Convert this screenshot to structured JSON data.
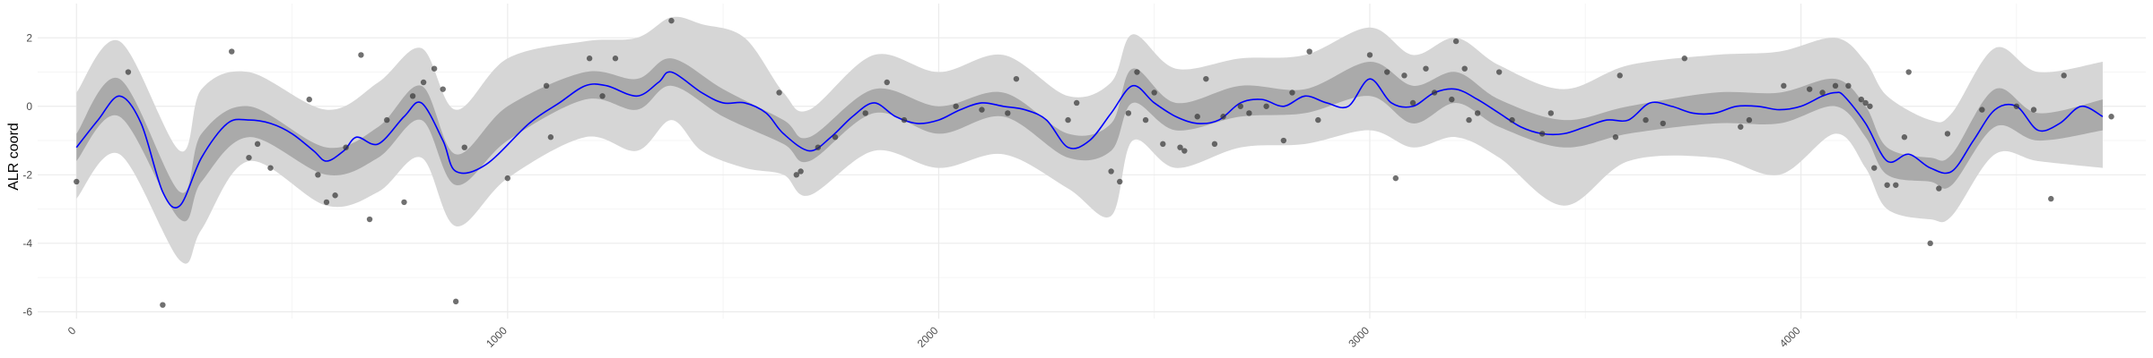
{
  "chart_data": {
    "type": "line",
    "title": "",
    "xlabel": "",
    "ylabel": "ALR coord",
    "xlim": [
      -90,
      4800
    ],
    "ylim": [
      -6.2,
      3.0
    ],
    "grid": true,
    "legend": "none",
    "x_ticks": [
      0,
      1000,
      2000,
      3000,
      4000
    ],
    "x_tick_labels": [
      "0",
      "1000",
      "2000",
      "3000",
      "4000"
    ],
    "y_ticks": [
      -6,
      -4,
      -2,
      0,
      2
    ],
    "y_tick_labels": [
      "-6",
      "-4",
      "-2",
      "0",
      "2"
    ],
    "colors": {
      "mean_line": "#0000ff",
      "inner_band": "#aaaaaa",
      "outer_band": "#d6d6d6",
      "points": "#333333",
      "grid_major": "#ebebeb",
      "grid_minor": "#f5f5f5"
    },
    "series": [
      {
        "kind": "mean",
        "x": [
          0,
          50,
          100,
          150,
          200,
          240,
          290,
          350,
          400,
          450,
          500,
          550,
          580,
          620,
          650,
          700,
          760,
          800,
          850,
          880,
          950,
          1050,
          1120,
          1180,
          1230,
          1300,
          1350,
          1380,
          1450,
          1500,
          1550,
          1600,
          1640,
          1700,
          1750,
          1800,
          1850,
          1900,
          1950,
          2000,
          2050,
          2100,
          2150,
          2200,
          2250,
          2300,
          2350,
          2400,
          2450,
          2500,
          2550,
          2600,
          2650,
          2700,
          2750,
          2800,
          2850,
          2900,
          2950,
          3000,
          3050,
          3100,
          3150,
          3200,
          3250,
          3300,
          3350,
          3400,
          3450,
          3500,
          3550,
          3600,
          3650,
          3700,
          3750,
          3800,
          3850,
          3900,
          3950,
          4000,
          4050,
          4080,
          4100,
          4150,
          4200,
          4250,
          4300,
          4350,
          4400,
          4450,
          4500,
          4550,
          4600,
          4650,
          4700
        ],
        "y": [
          -1.2,
          -0.4,
          0.3,
          -0.5,
          -2.5,
          -2.9,
          -1.5,
          -0.5,
          -0.4,
          -0.5,
          -0.8,
          -1.3,
          -1.6,
          -1.3,
          -0.9,
          -1.1,
          -0.3,
          0.1,
          -1.0,
          -1.9,
          -1.7,
          -0.5,
          0.1,
          0.6,
          0.6,
          0.3,
          0.7,
          1.0,
          0.4,
          0.1,
          0.1,
          -0.2,
          -0.8,
          -1.3,
          -0.9,
          -0.3,
          0.1,
          -0.3,
          -0.5,
          -0.4,
          -0.1,
          0.1,
          0.0,
          -0.1,
          -0.4,
          -1.2,
          -1.0,
          -0.2,
          0.6,
          0.1,
          -0.3,
          -0.5,
          -0.4,
          0.1,
          0.2,
          0.0,
          0.3,
          0.1,
          0.0,
          0.8,
          0.1,
          0.0,
          0.4,
          0.5,
          0.2,
          -0.2,
          -0.6,
          -0.8,
          -0.8,
          -0.6,
          -0.4,
          -0.4,
          0.1,
          0.0,
          -0.2,
          -0.2,
          0.0,
          0.0,
          -0.1,
          0.0,
          0.3,
          0.4,
          0.3,
          -0.5,
          -1.6,
          -1.4,
          -1.8,
          -1.9,
          -1.0,
          -0.1,
          0.0,
          -0.7,
          -0.5,
          0.0,
          -0.3
        ]
      },
      {
        "kind": "inner_band",
        "x": [
          0,
          100,
          240,
          290,
          400,
          580,
          700,
          800,
          880,
          1000,
          1180,
          1300,
          1380,
          1500,
          1640,
          1700,
          1850,
          2000,
          2150,
          2300,
          2400,
          2450,
          2550,
          2700,
          2850,
          3000,
          3100,
          3200,
          3300,
          3450,
          3600,
          3800,
          3950,
          4080,
          4150,
          4200,
          4300,
          4350,
          4450,
          4550,
          4700
        ],
        "lower": [
          -1.6,
          -0.3,
          -3.3,
          -2.2,
          -0.9,
          -2.0,
          -1.5,
          -0.4,
          -2.3,
          -1.0,
          0.2,
          -0.1,
          0.6,
          -0.3,
          -1.1,
          -1.6,
          -0.2,
          -0.8,
          -0.3,
          -1.5,
          -1.3,
          0.1,
          -0.7,
          -0.3,
          -0.2,
          0.3,
          -0.5,
          0.1,
          -0.6,
          -1.2,
          -0.8,
          -0.5,
          -0.5,
          0.0,
          -0.9,
          -2.0,
          -2.2,
          -2.3,
          -0.6,
          -1.0,
          -0.7
        ],
        "upper": [
          -0.8,
          0.8,
          -2.5,
          -0.8,
          0.0,
          -1.2,
          -0.6,
          0.6,
          -1.4,
          0.0,
          1.0,
          0.8,
          1.4,
          0.5,
          -0.4,
          -0.9,
          0.5,
          0.0,
          0.4,
          -0.8,
          -0.5,
          1.1,
          0.1,
          0.6,
          0.5,
          1.3,
          0.6,
          1.0,
          0.2,
          -0.4,
          0.0,
          0.4,
          0.4,
          0.8,
          0.0,
          -1.2,
          -1.5,
          -1.4,
          0.5,
          -0.2,
          0.2
        ]
      },
      {
        "kind": "outer_band",
        "x": [
          0,
          100,
          240,
          290,
          400,
          580,
          700,
          800,
          880,
          1000,
          1180,
          1300,
          1380,
          1450,
          1550,
          1640,
          1700,
          1850,
          2000,
          2150,
          2300,
          2400,
          2450,
          2550,
          2700,
          2850,
          3000,
          3100,
          3200,
          3300,
          3450,
          3600,
          3800,
          3950,
          4080,
          4150,
          4200,
          4300,
          4350,
          4450,
          4550,
          4700
        ],
        "lower": [
          -2.7,
          -1.4,
          -4.5,
          -3.6,
          -1.6,
          -2.9,
          -2.5,
          -1.5,
          -3.5,
          -2.1,
          -0.9,
          -1.3,
          -0.4,
          -1.3,
          -1.8,
          -2.0,
          -2.6,
          -1.3,
          -1.8,
          -1.4,
          -2.4,
          -3.2,
          -1.0,
          -1.8,
          -1.2,
          -1.1,
          -0.7,
          -1.2,
          -0.9,
          -1.5,
          -2.9,
          -1.6,
          -1.5,
          -2.0,
          -0.8,
          -1.8,
          -3.0,
          -3.3,
          -3.2,
          -1.4,
          -1.6,
          -1.8
        ],
        "upper": [
          0.4,
          1.9,
          -1.3,
          0.5,
          1.0,
          -0.1,
          0.7,
          1.7,
          -0.1,
          1.4,
          1.9,
          2.0,
          2.6,
          2.4,
          2.0,
          0.4,
          -0.1,
          1.5,
          1.0,
          1.5,
          0.3,
          0.7,
          2.1,
          1.1,
          1.4,
          1.5,
          2.3,
          1.5,
          2.0,
          1.2,
          0.5,
          1.2,
          1.5,
          1.6,
          2.0,
          1.3,
          0.3,
          -0.4,
          -0.2,
          1.7,
          1.0,
          1.3
        ]
      }
    ],
    "points": {
      "x": [
        0,
        120,
        200,
        360,
        400,
        420,
        450,
        540,
        560,
        580,
        600,
        625,
        660,
        680,
        720,
        760,
        780,
        805,
        830,
        850,
        880,
        900,
        1000,
        1090,
        1100,
        1190,
        1220,
        1250,
        1380,
        1630,
        1670,
        1680,
        1720,
        1760,
        1830,
        1880,
        1920,
        2040,
        2100,
        2160,
        2180,
        2300,
        2320,
        2400,
        2420,
        2440,
        2460,
        2480,
        2500,
        2520,
        2560,
        2570,
        2600,
        2620,
        2640,
        2660,
        2700,
        2720,
        2760,
        2800,
        2820,
        2860,
        2880,
        3000,
        3040,
        3060,
        3080,
        3100,
        3130,
        3150,
        3190,
        3200,
        3220,
        3230,
        3250,
        3300,
        3330,
        3400,
        3420,
        3570,
        3580,
        3640,
        3680,
        3730,
        3860,
        3880,
        3960,
        4020,
        4050,
        4080,
        4110,
        4140,
        4150,
        4160,
        4170,
        4200,
        4220,
        4240,
        4250,
        4300,
        4320,
        4340,
        4420,
        4500,
        4540,
        4580,
        4610,
        4720
      ],
      "y": [
        -2.2,
        1.0,
        -5.8,
        1.6,
        -1.5,
        -1.1,
        -1.8,
        0.2,
        -2.0,
        -2.8,
        -2.6,
        -1.2,
        1.5,
        -3.3,
        -0.4,
        -2.8,
        0.3,
        0.7,
        1.1,
        0.5,
        -5.7,
        -1.2,
        -2.1,
        0.6,
        -0.9,
        1.4,
        0.3,
        1.4,
        2.5,
        0.4,
        -2.0,
        -1.9,
        -1.2,
        -0.9,
        -0.2,
        0.7,
        -0.4,
        0.0,
        -0.1,
        -0.2,
        0.8,
        -0.4,
        0.1,
        -1.9,
        -2.2,
        -0.2,
        1.0,
        -0.4,
        0.4,
        -1.1,
        -1.2,
        -1.3,
        -0.3,
        0.8,
        -1.1,
        -0.3,
        0.0,
        -0.2,
        0.0,
        -1.0,
        0.4,
        1.6,
        -0.4,
        1.5,
        1.0,
        -2.1,
        0.9,
        0.1,
        1.1,
        0.4,
        0.2,
        1.9,
        1.1,
        -0.4,
        -0.2,
        1.0,
        -0.4,
        -0.8,
        -0.2,
        -0.9,
        0.9,
        -0.4,
        -0.5,
        1.4,
        -0.6,
        -0.4,
        0.6,
        0.5,
        0.4,
        0.6,
        0.6,
        0.2,
        0.1,
        0.0,
        -1.8,
        -2.3,
        -2.3,
        -0.9,
        1.0,
        -4.0,
        -2.4,
        -0.8,
        -0.1,
        0.0,
        -0.1,
        -2.7,
        0.9,
        -0.3
      ]
    }
  }
}
